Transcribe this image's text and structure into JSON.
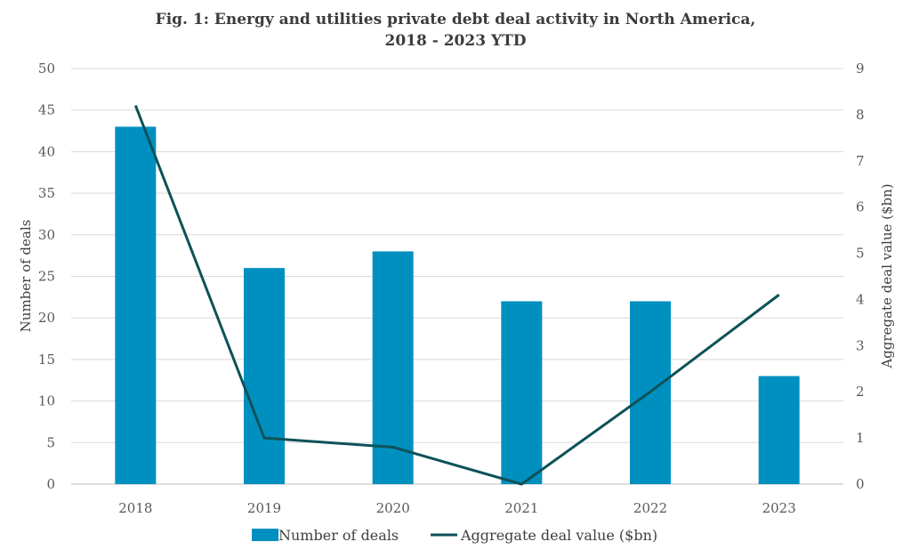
{
  "chart_data": {
    "type": "bar",
    "title": "Fig. 1: Energy and utilities private debt deal activity in North America,",
    "subtitle": "2018 - 2023 YTD",
    "categories": [
      "2018",
      "2019",
      "2020",
      "2021",
      "2022",
      "2023"
    ],
    "series": [
      {
        "name": "Number of deals",
        "type": "bar",
        "axis": "left",
        "color": "#0090c0",
        "values": [
          43,
          26,
          28,
          22,
          22,
          13
        ]
      },
      {
        "name": "Aggregate deal value ($bn)",
        "type": "line",
        "axis": "right",
        "color": "#0d5258",
        "values": [
          8.2,
          1.0,
          0.8,
          0.0,
          2.0,
          4.1
        ]
      }
    ],
    "ylabel": "Number of deals",
    "ylabel_right": "Aggregate deal value ($bn)",
    "ylim": [
      0,
      50
    ],
    "ylim_right": [
      0,
      9
    ],
    "yticks": [
      "0",
      "5",
      "10",
      "15",
      "20",
      "25",
      "30",
      "35",
      "40",
      "45",
      "50"
    ],
    "yticks_right": [
      "0",
      "1",
      "2",
      "3",
      "4",
      "5",
      "6",
      "7",
      "8",
      "9"
    ],
    "grid": true,
    "legend": "bottom"
  }
}
